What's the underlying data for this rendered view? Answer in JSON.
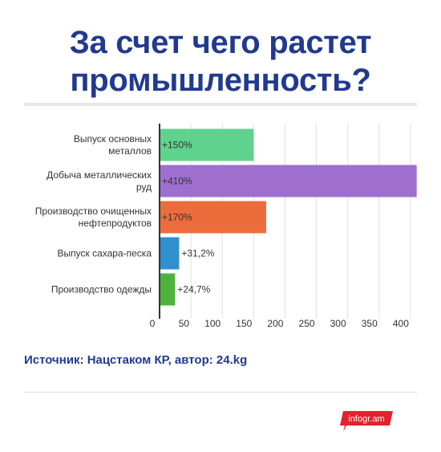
{
  "title": {
    "line1": "За счет чего растет",
    "line2": "промышленность?"
  },
  "chart_data": {
    "type": "bar",
    "orientation": "horizontal",
    "title": "",
    "xlabel": "",
    "ylabel": "",
    "categories": [
      [
        "Выпуск основных",
        "металлов"
      ],
      [
        "Добыча металлических",
        "руд"
      ],
      [
        "Производство очищенных",
        "нефтепродуктов"
      ],
      [
        "Выпуск сахара-песка"
      ],
      [
        "Производство одежды"
      ]
    ],
    "values": [
      150,
      410,
      170,
      31.2,
      24.7
    ],
    "labels": [
      "+150%",
      "+410%",
      "+170%",
      "+31,2%",
      "+24,7%"
    ],
    "colors": [
      "#5fd38d",
      "#9f6fd0",
      "#ec6c3c",
      "#2f8fcf",
      "#4db33d"
    ],
    "xlim": [
      0,
      410
    ],
    "xticks": [
      0,
      50,
      100,
      150,
      200,
      250,
      300,
      350,
      400
    ],
    "grid": true
  },
  "source": "Источник: Нацстаком КР, автор: 24.kg",
  "logo": "infogr.am",
  "colors": {
    "title": "#213a8f",
    "grid": "#e0e0e0",
    "logo": "#e2232b"
  }
}
